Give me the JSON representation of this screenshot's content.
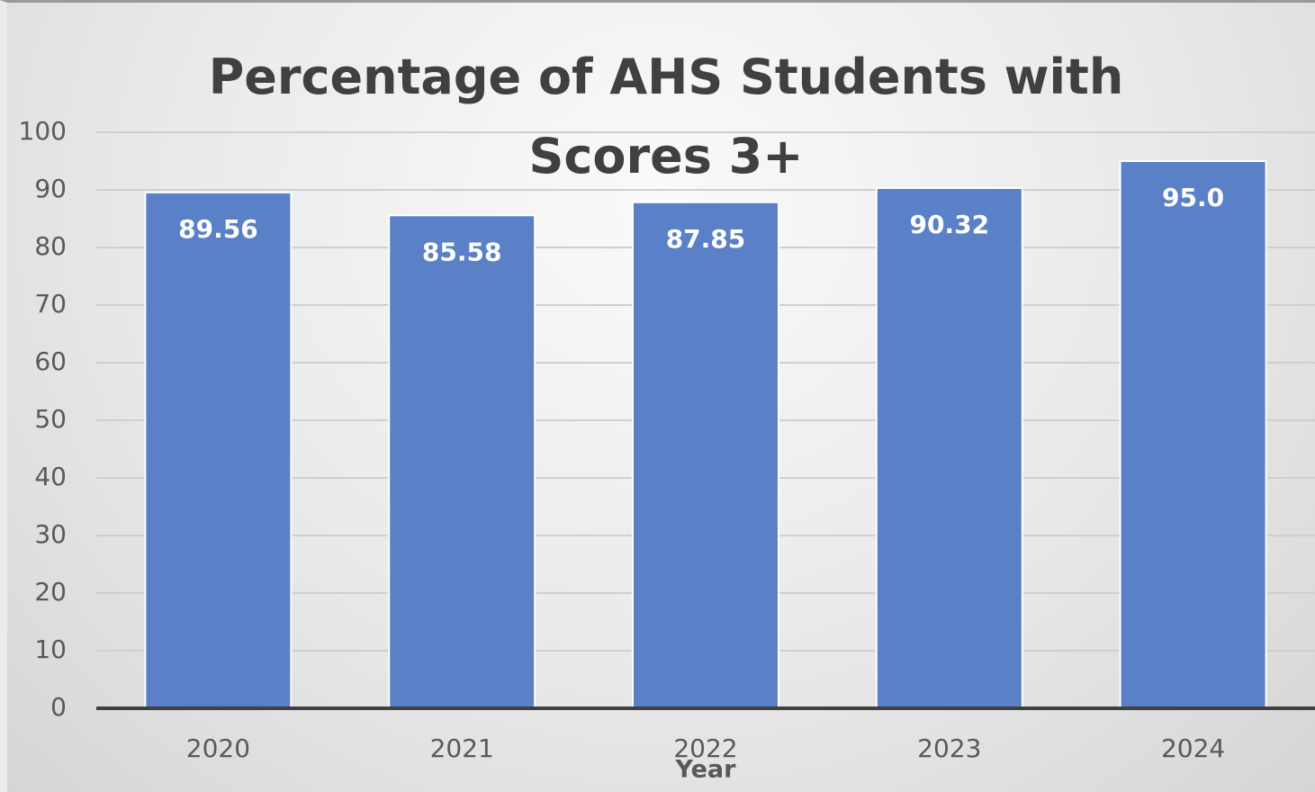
{
  "chart_data": {
    "type": "bar",
    "title": "Percentage of AHS Students with Scores 3+",
    "x_label": "Year",
    "categories": [
      "2020",
      "2021",
      "2022",
      "2023",
      "2024"
    ],
    "values": [
      89.56,
      85.58,
      87.85,
      90.32,
      95
    ],
    "value_labels": [
      "89.56",
      "85.58",
      "87.85",
      "90.32",
      "95.0"
    ],
    "color": "#5a80c8",
    "ylim": [
      0,
      100
    ],
    "yticks": [
      0,
      10,
      20,
      30,
      40,
      50,
      60,
      70,
      80,
      90,
      100
    ],
    "grid": true
  }
}
